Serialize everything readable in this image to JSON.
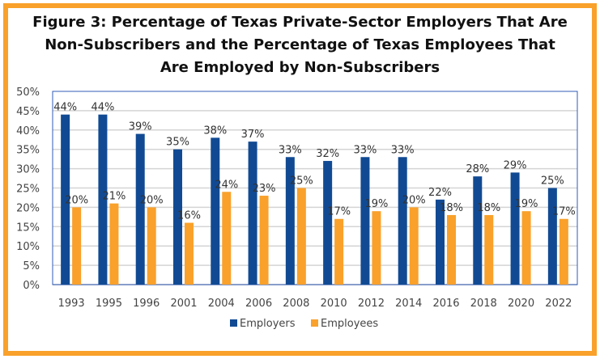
{
  "chart_data": {
    "type": "bar",
    "title_lines": [
      "Figure 3: Percentage of Texas Private-Sector Employers That Are",
      "Non-Subscribers and the Percentage of Texas Employees That",
      "Are Employed by Non-Subscribers"
    ],
    "categories": [
      "1993",
      "1995",
      "1996",
      "2001",
      "2004",
      "2006",
      "2008",
      "2010",
      "2012",
      "2014",
      "2016",
      "2018",
      "2020",
      "2022"
    ],
    "series": [
      {
        "name": "Employers",
        "color": "#114A93",
        "values": [
          44,
          44,
          39,
          35,
          38,
          37,
          33,
          32,
          33,
          33,
          22,
          28,
          29,
          25
        ]
      },
      {
        "name": "Employees",
        "color": "#F9A12B",
        "values": [
          20,
          21,
          20,
          16,
          24,
          23,
          25,
          17,
          19,
          20,
          18,
          18,
          19,
          17
        ]
      }
    ],
    "ylim": [
      0,
      50
    ],
    "yticks": [
      "0%",
      "5%",
      "10%",
      "15%",
      "20%",
      "25%",
      "30%",
      "35%",
      "40%",
      "45%",
      "50%"
    ],
    "value_format": "percent",
    "grid": true,
    "legend": "bottom",
    "frame_color": "#F9A12B"
  }
}
